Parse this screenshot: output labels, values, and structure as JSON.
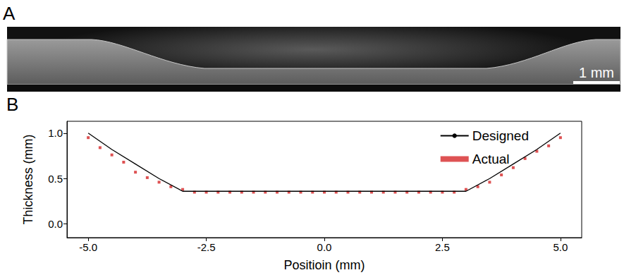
{
  "panel_a": {
    "label": "A",
    "scale_bar": "1 mm"
  },
  "chart_data": {
    "type": "line",
    "title": "B",
    "x_label": "Positioin (mm)",
    "y_label": "Thickness (mm)",
    "xlim": [
      -5.45,
      5.45
    ],
    "xticks": [
      {
        "value": -5,
        "label": "-5.0"
      },
      {
        "value": -2.5,
        "label": "-2.5"
      },
      {
        "value": 0,
        "label": "0.0"
      },
      {
        "value": 2.5,
        "label": "2.5"
      },
      {
        "value": 5,
        "label": "5.0"
      }
    ],
    "ylim": [
      -0.15,
      1.13
    ],
    "yticks": [
      {
        "value": 0,
        "label": "0.0"
      },
      {
        "value": 0.5,
        "label": "0.5"
      },
      {
        "value": 1,
        "label": "1.0"
      }
    ],
    "grid": false,
    "legend": "upper right",
    "series": [
      {
        "name": "Designed",
        "type": "line",
        "color": "#000000",
        "marker": "none",
        "line_style": "solid",
        "x": [
          -5,
          -4.5,
          -4,
          -3.5,
          -3,
          3,
          3.5,
          4,
          4.5,
          5
        ],
        "values": [
          1.0,
          0.82,
          0.66,
          0.5,
          0.36,
          0.36,
          0.5,
          0.66,
          0.82,
          1.0
        ]
      },
      {
        "name": "Actual",
        "type": "scatter",
        "color": "#d62728",
        "marker": "square",
        "x": [
          -5,
          -4.75,
          -4.5,
          -4.25,
          -4,
          -3.75,
          -3.5,
          -3.25,
          -3,
          -2.75,
          -2.5,
          -2.25,
          -2,
          -1.75,
          -1.5,
          -1.25,
          -1,
          -0.75,
          -0.5,
          -0.25,
          0,
          0.25,
          0.5,
          0.75,
          1,
          1.25,
          1.5,
          1.75,
          2,
          2.25,
          2.5,
          2.75,
          3,
          3.25,
          3.5,
          3.75,
          4,
          4.25,
          4.5,
          4.75,
          5
        ],
        "values": [
          0.95,
          0.84,
          0.76,
          0.68,
          0.57,
          0.51,
          0.46,
          0.41,
          0.38,
          0.35,
          0.35,
          0.35,
          0.35,
          0.35,
          0.35,
          0.35,
          0.35,
          0.35,
          0.35,
          0.35,
          0.35,
          0.35,
          0.35,
          0.35,
          0.35,
          0.35,
          0.35,
          0.35,
          0.35,
          0.35,
          0.35,
          0.35,
          0.38,
          0.41,
          0.46,
          0.54,
          0.62,
          0.72,
          0.8,
          0.86,
          0.95
        ]
      }
    ]
  }
}
